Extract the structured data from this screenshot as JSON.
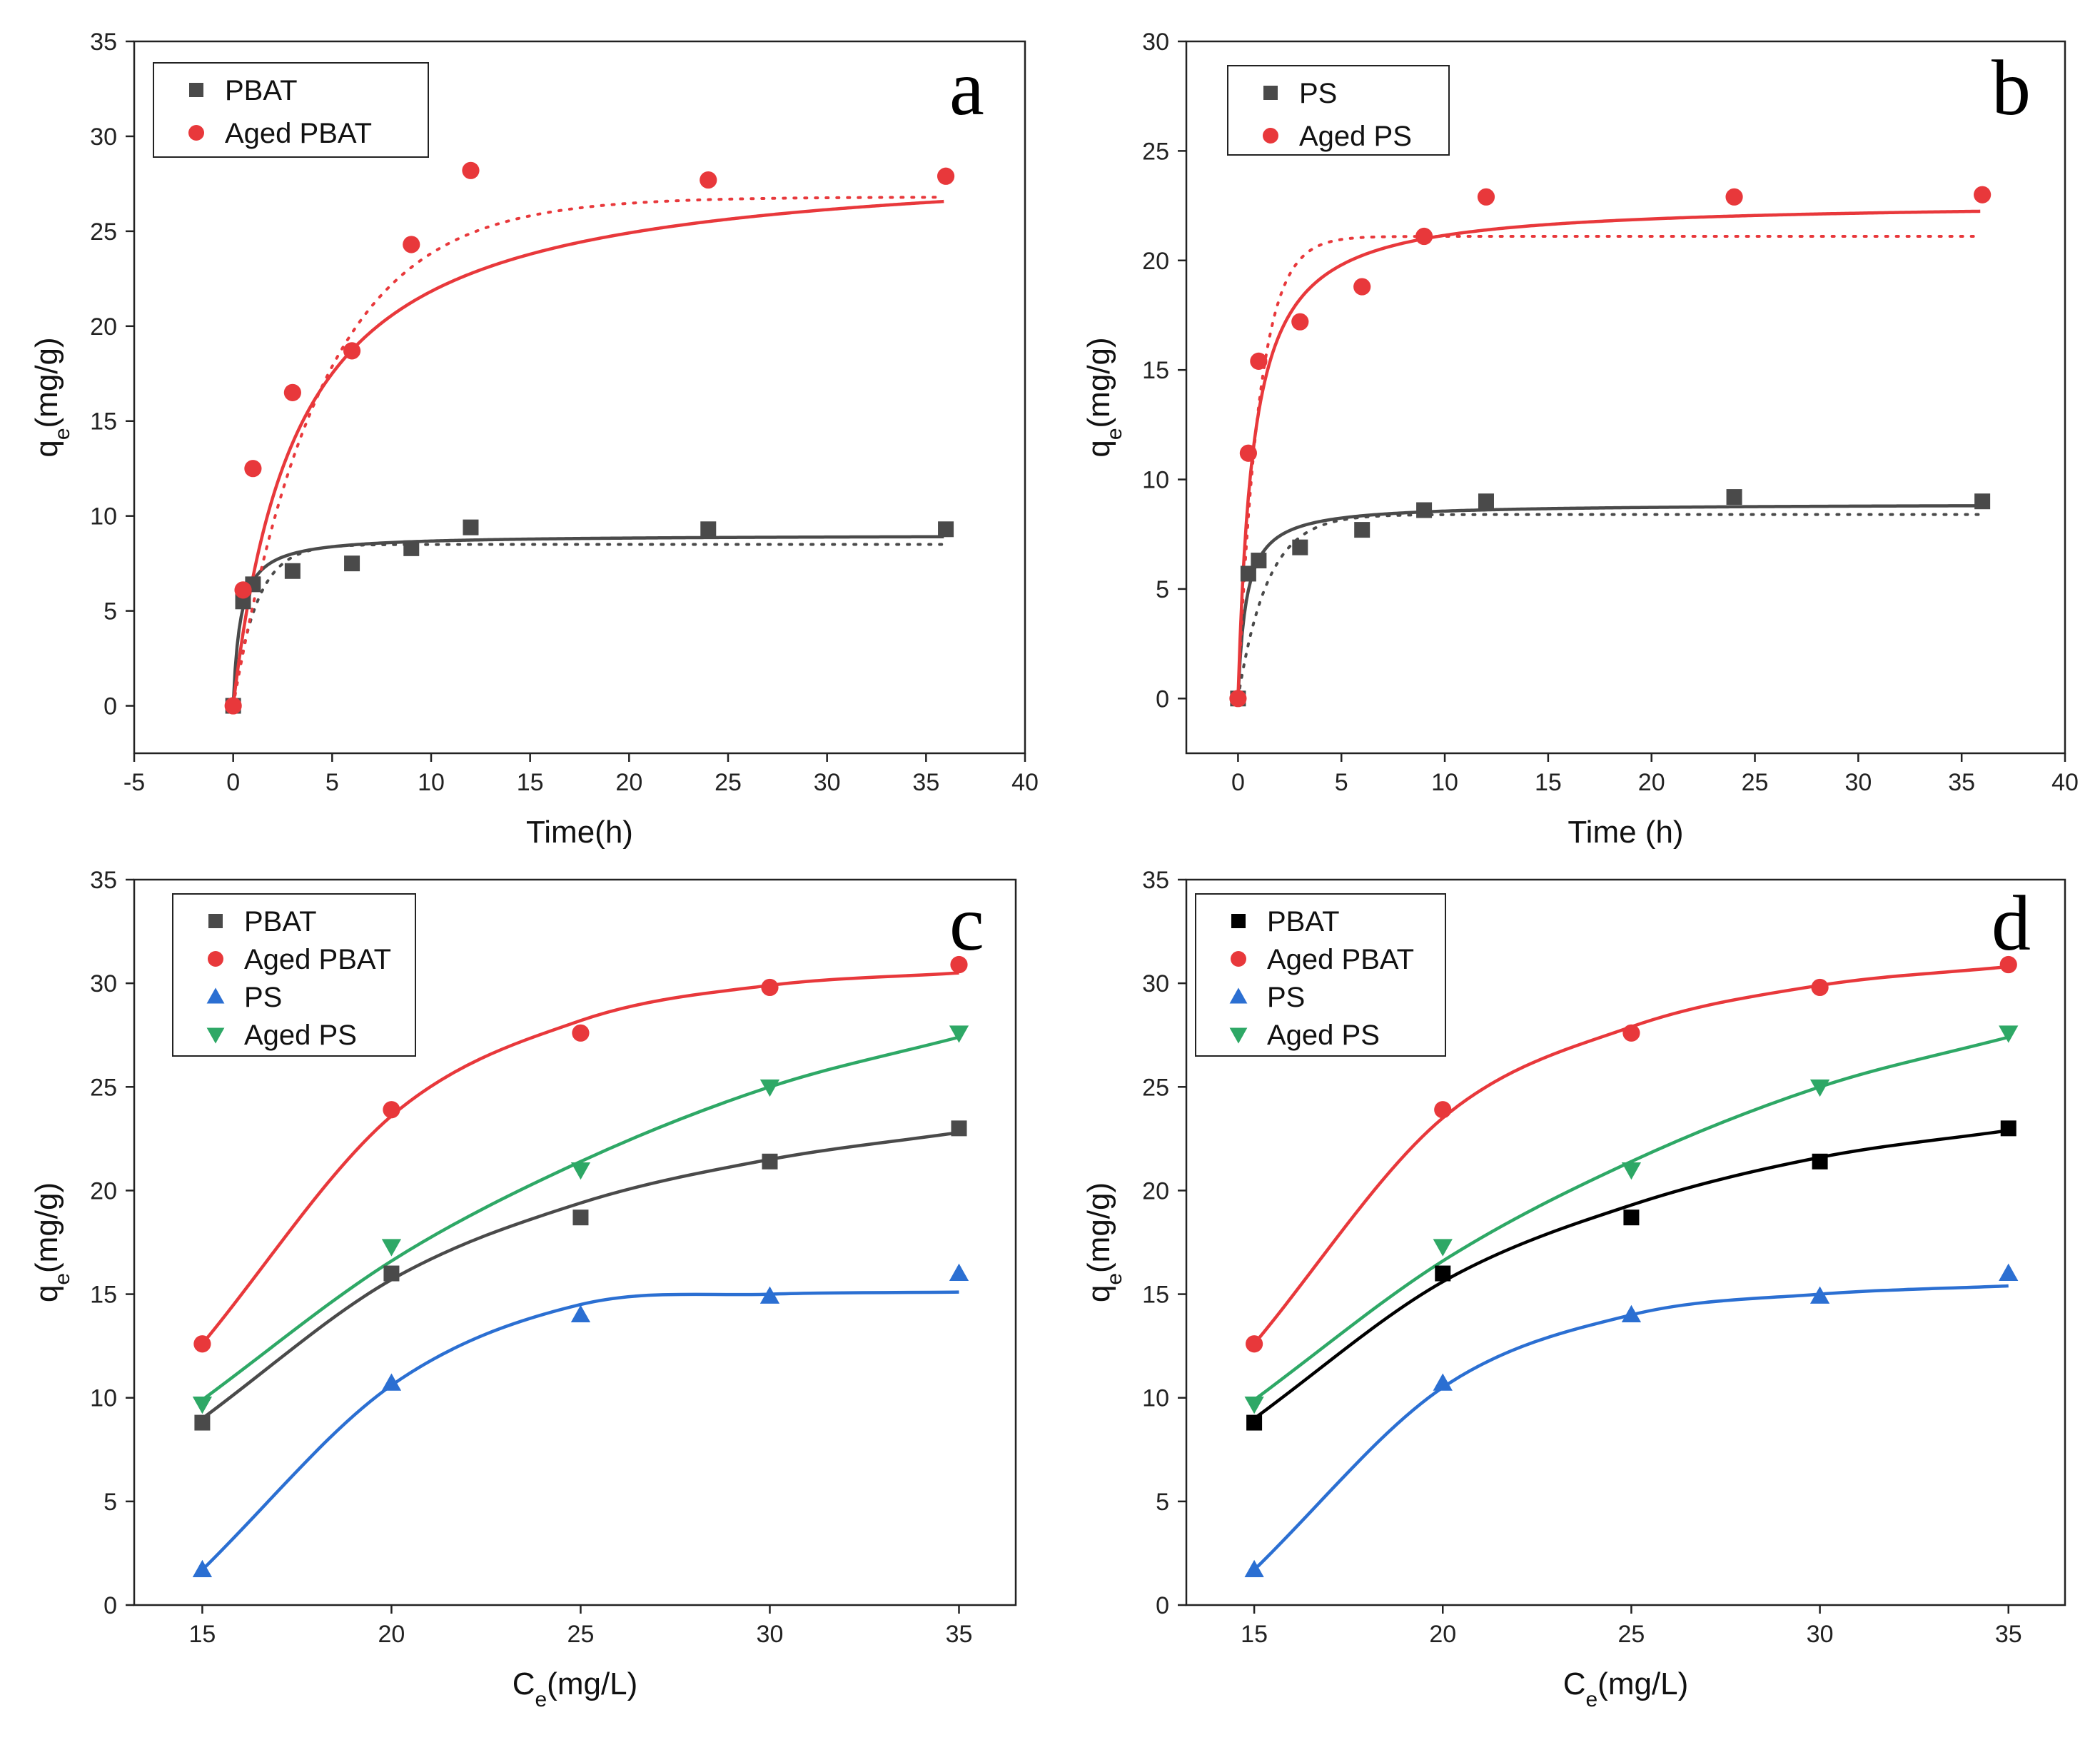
{
  "chart_data": [
    {
      "panel": "a",
      "type": "scatter",
      "xlabel": "Time(h)",
      "ylabel": "q",
      "ylabel_sub": "e",
      "ylabel_tail": "(mg/g)",
      "xlim": [
        -5,
        40
      ],
      "ylim": [
        -2.5,
        35
      ],
      "xticks": [
        -5,
        0,
        5,
        10,
        15,
        20,
        25,
        30,
        35,
        40
      ],
      "yticks": [
        0,
        5,
        10,
        15,
        20,
        25,
        30,
        35
      ],
      "legend_position": "top-left",
      "series": [
        {
          "name": "PBAT",
          "marker": "square",
          "color": "#4a4a4a",
          "x": [
            0,
            0.5,
            1,
            3,
            6,
            9,
            12,
            24,
            36
          ],
          "y": [
            0,
            5.5,
            6.4,
            7.1,
            7.5,
            8.3,
            9.4,
            9.3,
            9.3
          ],
          "fit_solid": {
            "model": "pso",
            "qe": 9.0,
            "k": 0.3
          },
          "fit_dotted": {
            "model": "pfo",
            "qe": 8.5,
            "k": 0.85
          }
        },
        {
          "name": "Aged PBAT",
          "marker": "circle",
          "color": "#e8383b",
          "x": [
            0,
            0.5,
            1,
            3,
            6,
            9,
            12,
            24,
            36
          ],
          "y": [
            0,
            6.1,
            12.5,
            16.5,
            18.7,
            24.3,
            28.2,
            27.7,
            27.9
          ],
          "fit_solid": {
            "model": "pso",
            "qe": 29.0,
            "k": 0.0105
          },
          "fit_dotted": {
            "model": "pfo",
            "qe": 26.8,
            "k": 0.22
          }
        }
      ]
    },
    {
      "panel": "b",
      "type": "scatter",
      "xlabel": "Time (h)",
      "ylabel": "q",
      "ylabel_sub": "e",
      "ylabel_tail": "(mg/g)",
      "xlim": [
        -2.5,
        40
      ],
      "ylim": [
        -2.5,
        30
      ],
      "xticks": [
        0,
        5,
        10,
        15,
        20,
        25,
        30,
        35,
        40
      ],
      "yticks": [
        0,
        5,
        10,
        15,
        20,
        25,
        30
      ],
      "legend_position": "top-left",
      "series": [
        {
          "name": "PS",
          "marker": "square",
          "color": "#4a4a4a",
          "x": [
            0,
            0.5,
            1,
            3,
            6,
            9,
            12,
            24,
            36
          ],
          "y": [
            0,
            5.7,
            6.3,
            6.9,
            7.7,
            8.6,
            9.0,
            9.2,
            9.0
          ],
          "fit_solid": {
            "model": "pso",
            "qe": 8.9,
            "k": 0.28
          },
          "fit_dotted": {
            "model": "pfo",
            "qe": 8.4,
            "k": 0.7
          }
        },
        {
          "name": "Aged PS",
          "marker": "circle",
          "color": "#e8383b",
          "x": [
            0,
            0.5,
            1,
            3,
            6,
            9,
            12,
            24,
            36
          ],
          "y": [
            0,
            11.2,
            15.4,
            17.2,
            18.8,
            21.1,
            22.9,
            22.9,
            23.0
          ],
          "fit_solid": {
            "model": "pso",
            "qe": 22.7,
            "k": 0.06
          },
          "fit_dotted": {
            "model": "pfo",
            "qe": 21.1,
            "k": 1.0
          }
        }
      ]
    },
    {
      "panel": "c",
      "type": "scatter",
      "xlabel": "C",
      "xlabel_sub": "e",
      "xlabel_tail": "(mg/L)",
      "ylabel": "q",
      "ylabel_sub": "e",
      "ylabel_tail": "(mg/g)",
      "xlim": [
        13.2,
        36.5
      ],
      "ylim": [
        0,
        35
      ],
      "xticks": [
        15,
        20,
        25,
        30,
        35
      ],
      "yticks": [
        0,
        5,
        10,
        15,
        20,
        25,
        30,
        35
      ],
      "legend_position": "top-left",
      "series": [
        {
          "name": "PBAT",
          "marker": "square",
          "color": "#4a4a4a",
          "x": [
            15,
            20,
            25,
            30,
            35
          ],
          "y": [
            8.8,
            16.0,
            18.7,
            21.4,
            23.0
          ],
          "fit": [
            9.0,
            15.7,
            19.4,
            21.5,
            22.8
          ]
        },
        {
          "name": "Aged PBAT",
          "marker": "circle",
          "color": "#e8383b",
          "x": [
            15,
            20,
            25,
            30,
            35
          ],
          "y": [
            12.6,
            23.9,
            27.6,
            29.8,
            30.9
          ],
          "fit": [
            12.6,
            23.6,
            28.2,
            29.9,
            30.5
          ]
        },
        {
          "name": "PS",
          "marker": "triangle-up",
          "color": "#2b6fd2",
          "x": [
            15,
            20,
            25,
            30,
            35
          ],
          "y": [
            1.7,
            10.7,
            14.0,
            14.9,
            16.0
          ],
          "fit": [
            1.7,
            10.6,
            14.5,
            15.0,
            15.1
          ]
        },
        {
          "name": "Aged PS",
          "marker": "triangle-down",
          "color": "#2ea866",
          "x": [
            15,
            20,
            25,
            30,
            35
          ],
          "y": [
            9.7,
            17.3,
            21.0,
            25.0,
            27.6
          ],
          "fit": [
            9.9,
            16.6,
            21.4,
            25.0,
            27.4
          ]
        }
      ]
    },
    {
      "panel": "d",
      "type": "scatter",
      "xlabel": "C",
      "xlabel_sub": "e",
      "xlabel_tail": "(mg/L)",
      "ylabel": "q",
      "ylabel_sub": "e",
      "ylabel_tail": "(mg/g)",
      "xlim": [
        13.2,
        36.5
      ],
      "ylim": [
        0,
        35
      ],
      "xticks": [
        15,
        20,
        25,
        30,
        35
      ],
      "yticks": [
        0,
        5,
        10,
        15,
        20,
        25,
        30,
        35
      ],
      "legend_position": "top-left",
      "series": [
        {
          "name": "PBAT",
          "marker": "square",
          "color": "#000000",
          "x": [
            15,
            20,
            25,
            30,
            35
          ],
          "y": [
            8.8,
            16.0,
            18.7,
            21.4,
            23.0
          ],
          "fit": [
            9.0,
            15.6,
            19.3,
            21.6,
            22.9
          ]
        },
        {
          "name": "Aged PBAT",
          "marker": "circle",
          "color": "#e8383b",
          "x": [
            15,
            20,
            25,
            30,
            35
          ],
          "y": [
            12.6,
            23.9,
            27.6,
            29.8,
            30.9
          ],
          "fit": [
            12.6,
            23.5,
            27.9,
            29.9,
            30.8
          ]
        },
        {
          "name": "PS",
          "marker": "triangle-up",
          "color": "#2b6fd2",
          "x": [
            15,
            20,
            25,
            30,
            35
          ],
          "y": [
            1.7,
            10.7,
            14.0,
            14.9,
            16.0
          ],
          "fit": [
            1.7,
            10.5,
            14.0,
            15.0,
            15.4
          ]
        },
        {
          "name": "Aged PS",
          "marker": "triangle-down",
          "color": "#2ea866",
          "x": [
            15,
            20,
            25,
            30,
            35
          ],
          "y": [
            9.7,
            17.3,
            21.0,
            25.0,
            27.6
          ],
          "fit": [
            9.9,
            16.6,
            21.4,
            25.0,
            27.4
          ]
        }
      ]
    }
  ]
}
